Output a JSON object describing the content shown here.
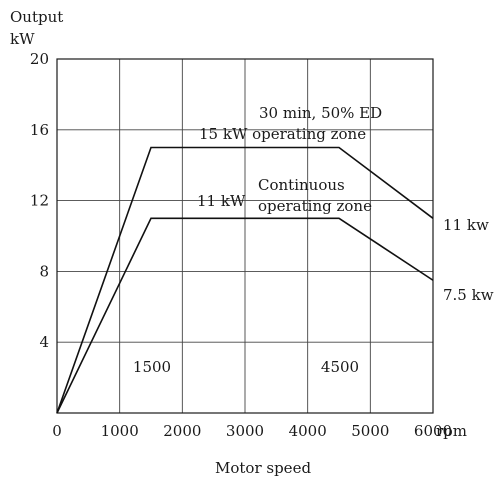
{
  "chart_data": {
    "type": "line",
    "title": "",
    "xlabel": "Motor speed",
    "xunit": "rpm",
    "ylabel": "Output",
    "yunit": "kW",
    "xlim": [
      0,
      6000
    ],
    "ylim": [
      0,
      20
    ],
    "grid": true,
    "x_ticks": [
      0,
      1000,
      2000,
      3000,
      4000,
      5000,
      6000
    ],
    "x_tick_labels": [
      "0",
      "1000",
      "2000",
      "3000",
      "4000",
      "5000",
      "6000"
    ],
    "y_ticks": [
      4,
      8,
      12,
      16,
      20
    ],
    "y_tick_labels": [
      "4",
      "8",
      "12",
      "16",
      "20"
    ],
    "origin_label": "0",
    "series": [
      {
        "x": [
          0,
          1500,
          4500,
          6000
        ],
        "y": [
          0,
          15,
          15,
          11
        ],
        "end_label": "11 kw"
      },
      {
        "x": [
          0,
          1500,
          4500,
          6000
        ],
        "y": [
          0,
          11,
          11,
          7.5
        ],
        "end_label": "7.5 kw"
      }
    ],
    "markers": [
      {
        "x": 1500,
        "label": "1500"
      },
      {
        "x": 4500,
        "label": "4500"
      }
    ],
    "annotations": [
      {
        "lines": [
          "30 min, 50% ED",
          "15 kW operating zone"
        ]
      },
      {
        "lines": [
          "11 kW",
          "Continuous",
          "operating zone"
        ]
      }
    ]
  }
}
